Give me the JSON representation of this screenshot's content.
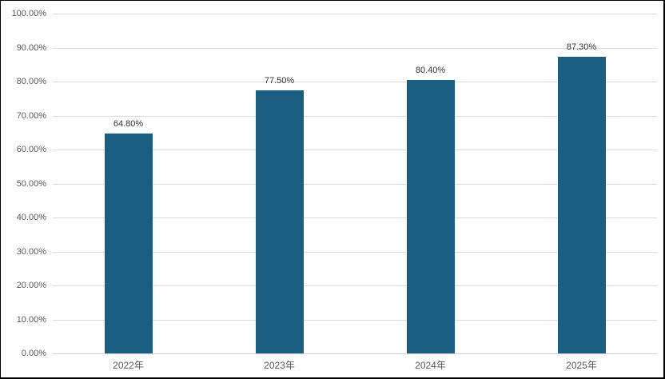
{
  "chart_data": {
    "type": "bar",
    "title": "",
    "xlabel": "",
    "ylabel": "",
    "categories": [
      "2022年",
      "2023年",
      "2024年",
      "2025年"
    ],
    "values": [
      64.8,
      77.5,
      80.4,
      87.3
    ],
    "data_labels": [
      "64.80%",
      "77.50%",
      "80.40%",
      "87.30%"
    ],
    "ylim": [
      0,
      100
    ],
    "yticks": [
      0,
      10,
      20,
      30,
      40,
      50,
      60,
      70,
      80,
      90,
      100
    ],
    "ytick_labels": [
      "0.00%",
      "10.00%",
      "20.00%",
      "30.00%",
      "40.00%",
      "50.00%",
      "60.00%",
      "70.00%",
      "80.00%",
      "90.00%",
      "100.00%"
    ],
    "grid": true,
    "legend": false,
    "colors": {
      "bar_fill": "#1b5e81",
      "gridline": "#dcdcdc",
      "axis_line": "#d0d0d0",
      "axis_label": "#595959",
      "data_label": "#333333",
      "frame_border": "#000000",
      "background": "#ffffff"
    }
  }
}
